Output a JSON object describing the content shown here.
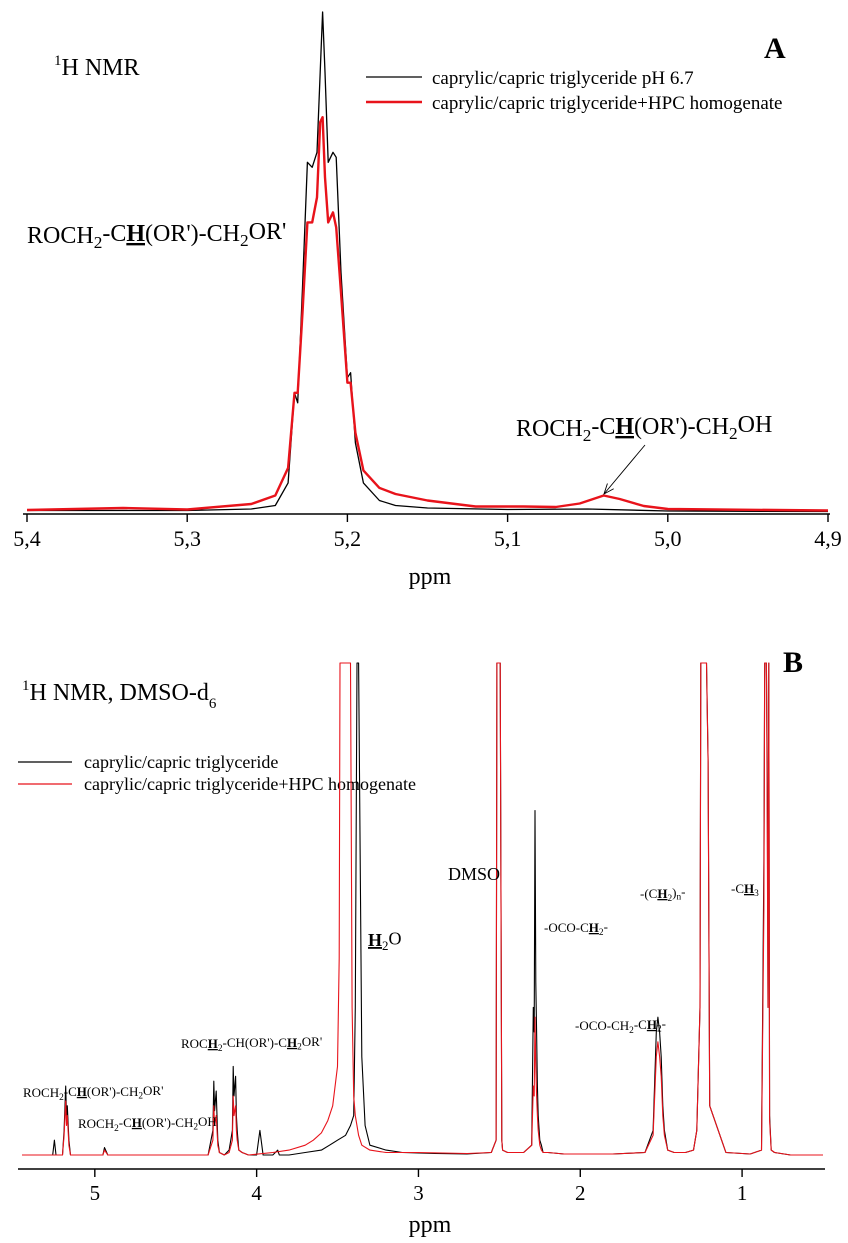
{
  "chart_data": [
    {
      "type": "line",
      "panel_label": "A",
      "title": "¹H NMR",
      "xlabel": "ppm",
      "xlim": [
        5.4,
        4.9
      ],
      "x_reversed": true,
      "x_ticks": [
        "5,4",
        "5,3",
        "5,2",
        "5,1",
        "5,0",
        "4,9"
      ],
      "x_tick_values": [
        5.4,
        5.3,
        5.2,
        5.1,
        5.0,
        4.9
      ],
      "ylim": [
        0,
        100
      ],
      "grid": false,
      "legend_position": "top-right",
      "series": [
        {
          "name": "caprylic/capric triglyceride pH 6.7",
          "color": "#000000",
          "x": [
            5.4,
            5.3,
            5.26,
            5.245,
            5.237,
            5.233,
            5.231,
            5.228,
            5.225,
            5.222,
            5.219,
            5.217,
            5.2155,
            5.214,
            5.212,
            5.209,
            5.207,
            5.204,
            5.2,
            5.198,
            5.195,
            5.19,
            5.18,
            5.17,
            5.15,
            5.1,
            5.05,
            5.0,
            4.9
          ],
          "y": [
            0.5,
            0.5,
            0.8,
            1.5,
            6,
            24,
            22,
            45,
            70,
            69,
            72,
            88,
            100,
            88,
            70,
            72,
            71,
            48,
            27,
            28,
            14,
            6,
            2.5,
            1.5,
            1,
            0.7,
            0.8,
            0.4,
            0.3
          ]
        },
        {
          "name": "caprylic/capric triglyceride+HPC homogenate",
          "color": "#e8131b",
          "x": [
            5.4,
            5.34,
            5.3,
            5.26,
            5.245,
            5.237,
            5.233,
            5.231,
            5.228,
            5.225,
            5.222,
            5.219,
            5.217,
            5.2155,
            5.214,
            5.212,
            5.209,
            5.207,
            5.204,
            5.2,
            5.198,
            5.195,
            5.19,
            5.18,
            5.17,
            5.15,
            5.12,
            5.09,
            5.07,
            5.055,
            5.04,
            5.03,
            5.015,
            5.0,
            4.9
          ],
          "y": [
            0.6,
            1.0,
            0.7,
            1.8,
            3.5,
            9,
            24,
            24,
            40,
            58,
            58,
            63,
            78,
            79,
            67,
            58,
            60,
            57,
            44,
            26,
            26,
            16,
            8.5,
            5,
            3.8,
            2.5,
            1.3,
            1.3,
            1.2,
            1.9,
            3.5,
            2.8,
            1.4,
            0.8,
            0.5
          ]
        }
      ],
      "annotations": [
        {
          "parts": [
            [
              "ROCH",
              ""
            ],
            [
              "2",
              "sub"
            ],
            [
              "-C",
              ""
            ],
            [
              "H",
              "bu"
            ],
            [
              "(OR')-CH",
              ""
            ],
            [
              "2",
              "sub"
            ],
            [
              "OR'",
              ""
            ]
          ]
        },
        {
          "parts": [
            [
              "ROCH",
              ""
            ],
            [
              "2",
              "sub"
            ],
            [
              "-C",
              ""
            ],
            [
              "H",
              "bu"
            ],
            [
              "(OR')-CH",
              ""
            ],
            [
              "2",
              "sub"
            ],
            [
              "OH",
              ""
            ]
          ]
        }
      ]
    },
    {
      "type": "line",
      "panel_label": "B",
      "title": "¹H NMR, DMSO-d₆",
      "xlabel": "ppm",
      "xlim": [
        5.45,
        0.5
      ],
      "x_reversed": true,
      "x_ticks": [
        "5",
        "4",
        "3",
        "2",
        "1"
      ],
      "x_tick_values": [
        5,
        4,
        3,
        2,
        1
      ],
      "ylim": [
        0,
        100
      ],
      "grid": false,
      "legend_position": "top-left",
      "series": [
        {
          "name": "caprylic/capric triglyceride",
          "color": "#000000",
          "x": [
            5.45,
            5.3,
            5.26,
            5.25,
            5.24,
            5.2,
            5.19,
            5.18,
            5.175,
            5.17,
            5.16,
            5.15,
            5.1,
            4.95,
            4.94,
            4.92,
            4.6,
            4.3,
            4.27,
            4.265,
            4.26,
            4.25,
            4.245,
            4.24,
            4.23,
            4.2,
            4.17,
            4.15,
            4.145,
            4.14,
            4.13,
            4.125,
            4.12,
            4.11,
            4.09,
            4.05,
            4.0,
            3.98,
            3.96,
            3.9,
            3.87,
            3.86,
            3.8,
            3.7,
            3.6,
            3.55,
            3.5,
            3.45,
            3.42,
            3.4,
            3.39,
            3.38,
            3.37,
            3.36,
            3.35,
            3.33,
            3.3,
            3.2,
            3.1,
            2.9,
            2.7,
            2.55,
            2.52,
            2.515,
            2.505,
            2.5,
            2.495,
            2.485,
            2.48,
            2.45,
            2.35,
            2.3,
            2.29,
            2.285,
            2.28,
            2.275,
            2.27,
            2.265,
            2.26,
            2.25,
            2.24,
            2.23,
            2.2,
            2.1,
            1.8,
            1.6,
            1.55,
            1.53,
            1.52,
            1.51,
            1.5,
            1.49,
            1.48,
            1.46,
            1.42,
            1.35,
            1.3,
            1.28,
            1.26,
            1.255,
            1.25,
            1.24,
            1.235,
            1.225,
            1.22,
            1.21,
            1.2,
            1.1,
            0.95,
            0.88,
            0.865,
            0.86,
            0.855,
            0.85,
            0.845,
            0.84,
            0.835,
            0.83,
            0.82,
            0.8,
            0.7,
            0.6,
            0.58,
            0.57,
            0.5
          ],
          "y": [
            0,
            0,
            0,
            3,
            0,
            0,
            5,
            14,
            8,
            10,
            3,
            0,
            0,
            0,
            1.5,
            0,
            0,
            0,
            5,
            15,
            9,
            13,
            8,
            3,
            0.5,
            0,
            1,
            5,
            18,
            12,
            16,
            8,
            5,
            1,
            0.5,
            0,
            0,
            5,
            0,
            0,
            1,
            0,
            0,
            0.5,
            1,
            2,
            3,
            4,
            6,
            8,
            30,
            100,
            100,
            60,
            20,
            6,
            2,
            1,
            0.5,
            0.3,
            0.2,
            0.5,
            3,
            100,
            100,
            100,
            100,
            3,
            1,
            0.5,
            0.5,
            2,
            30,
            25,
            70,
            35,
            25,
            14,
            8,
            3,
            2,
            0.5,
            0.5,
            0.2,
            0.2,
            0.5,
            5,
            25,
            28,
            25,
            20,
            10,
            5,
            1,
            0.5,
            0.5,
            1,
            5,
            30,
            100,
            100,
            100,
            100,
            100,
            100,
            80,
            10,
            0.5,
            0.2,
            1,
            60,
            100,
            100,
            100,
            80,
            30,
            100,
            8,
            1,
            0.5,
            0,
            0,
            0,
            0,
            0
          ],
          "clipped": true
        },
        {
          "name": "caprylic/capric triglyceride+HPC homogenate",
          "color": "#e8131b",
          "x": [
            5.45,
            5.3,
            5.2,
            5.19,
            5.18,
            5.175,
            5.17,
            5.16,
            5.15,
            5.1,
            4.95,
            4.94,
            4.92,
            4.6,
            4.3,
            4.27,
            4.265,
            4.26,
            4.25,
            4.245,
            4.24,
            4.23,
            4.2,
            4.17,
            4.15,
            4.145,
            4.14,
            4.13,
            4.125,
            4.12,
            4.11,
            4.09,
            4.05,
            3.9,
            3.8,
            3.7,
            3.65,
            3.6,
            3.56,
            3.53,
            3.5,
            3.49,
            3.485,
            3.48,
            3.47,
            3.46,
            3.45,
            3.44,
            3.43,
            3.42,
            3.41,
            3.4,
            3.39,
            3.37,
            3.35,
            3.3,
            3.2,
            3.0,
            2.7,
            2.55,
            2.52,
            2.515,
            2.505,
            2.5,
            2.495,
            2.485,
            2.48,
            2.45,
            2.35,
            2.3,
            2.29,
            2.285,
            2.28,
            2.275,
            2.27,
            2.265,
            2.26,
            2.25,
            2.24,
            2.23,
            2.2,
            2.1,
            1.8,
            1.6,
            1.55,
            1.53,
            1.52,
            1.51,
            1.5,
            1.49,
            1.48,
            1.46,
            1.42,
            1.35,
            1.3,
            1.28,
            1.26,
            1.255,
            1.25,
            1.24,
            1.235,
            1.225,
            1.22,
            1.21,
            1.2,
            1.1,
            0.95,
            0.88,
            0.865,
            0.86,
            0.855,
            0.85,
            0.845,
            0.84,
            0.835,
            0.83,
            0.82,
            0.8,
            0.7,
            0.6,
            0.5
          ],
          "y": [
            0,
            0,
            0,
            4,
            11,
            6,
            8,
            2,
            0,
            0,
            0,
            1,
            0,
            0,
            0,
            3,
            10,
            6,
            8,
            5,
            2,
            0.5,
            0,
            0.5,
            3,
            12,
            8,
            10,
            5,
            3,
            1,
            0.5,
            0,
            0.5,
            1,
            2,
            3,
            4.5,
            7,
            10,
            18,
            40,
            100,
            100,
            100,
            100,
            100,
            100,
            100,
            100,
            30,
            12,
            8,
            4,
            2,
            1,
            0.5,
            0.5,
            0.3,
            0.5,
            3,
            100,
            100,
            100,
            100,
            3,
            1,
            0.5,
            0.5,
            2,
            14,
            12,
            28,
            18,
            12,
            8,
            5,
            2,
            1,
            0.5,
            0.5,
            0.2,
            0.2,
            0.5,
            4,
            20,
            23,
            20,
            16,
            8,
            4,
            1,
            0.5,
            0.5,
            1,
            5,
            30,
            100,
            100,
            100,
            100,
            100,
            100,
            80,
            10,
            0.5,
            0.2,
            1,
            50,
            100,
            100,
            100,
            70,
            30,
            100,
            7,
            1,
            0.5,
            0,
            0,
            0
          ],
          "clipped": true
        }
      ],
      "annotations": [
        {
          "parts": [
            [
              "DMSO",
              ""
            ]
          ]
        },
        {
          "parts": [
            [
              "H",
              "bu"
            ],
            [
              "2",
              "sub"
            ],
            [
              "O",
              ""
            ]
          ]
        },
        {
          "parts": [
            [
              "-OCO-C",
              ""
            ],
            [
              "H",
              "bu"
            ],
            [
              "2",
              "sub"
            ],
            [
              "-",
              ""
            ]
          ]
        },
        {
          "parts": [
            [
              "-OCO-CH",
              ""
            ],
            [
              "2",
              "sub"
            ],
            [
              "-C",
              ""
            ],
            [
              "H",
              "bu"
            ],
            [
              "2",
              "sub"
            ],
            [
              "-",
              ""
            ]
          ]
        },
        {
          "parts": [
            [
              "-(C",
              ""
            ],
            [
              "H",
              "bu"
            ],
            [
              "2",
              "sub"
            ],
            [
              ")",
              ""
            ],
            [
              "n",
              "sub"
            ],
            [
              "-",
              ""
            ]
          ]
        },
        {
          "parts": [
            [
              "-C",
              ""
            ],
            [
              "H",
              "bu"
            ],
            [
              "3",
              "sub"
            ]
          ]
        },
        {
          "parts": [
            [
              "ROC",
              ""
            ],
            [
              "H",
              "bu"
            ],
            [
              "2",
              "sub"
            ],
            [
              "-CH(OR')-C",
              ""
            ],
            [
              "H",
              "bu"
            ],
            [
              "2",
              "sub"
            ],
            [
              "OR'",
              ""
            ]
          ]
        },
        {
          "parts": [
            [
              "ROCH",
              ""
            ],
            [
              "2",
              "sub"
            ],
            [
              "-C",
              ""
            ],
            [
              "H",
              "bu"
            ],
            [
              "(OR')-CH",
              ""
            ],
            [
              "2",
              "sub"
            ],
            [
              "OR'",
              ""
            ]
          ]
        },
        {
          "parts": [
            [
              "ROCH",
              ""
            ],
            [
              "2",
              "sub"
            ],
            [
              "-C",
              ""
            ],
            [
              "H",
              "bu"
            ],
            [
              "(OR')-CH",
              ""
            ],
            [
              "2",
              "sub"
            ],
            [
              "OH",
              ""
            ]
          ]
        }
      ]
    }
  ]
}
